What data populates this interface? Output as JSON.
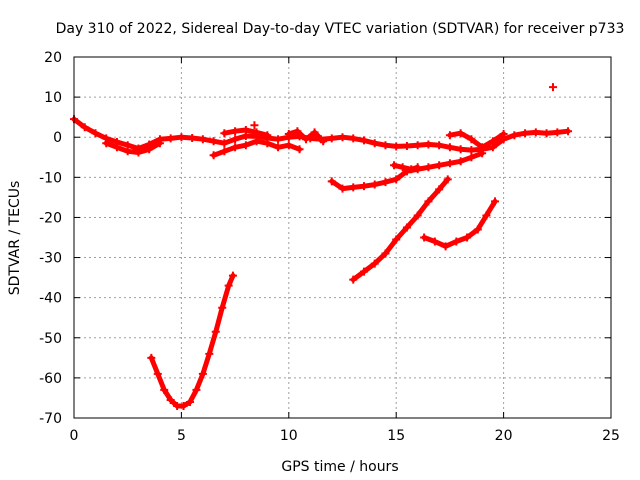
{
  "chart_data": {
    "type": "scatter",
    "title": "Day 310 of 2022, Sidereal Day-to-day VTEC variation (SDTVAR) for receiver p733",
    "xlabel": "GPS time / hours",
    "ylabel": "SDTVAR / TECUs",
    "xlim": [
      0,
      25
    ],
    "ylim": [
      -70,
      20
    ],
    "x_ticks": [
      "0",
      "5",
      "10",
      "15",
      "20",
      "25"
    ],
    "y_ticks": [
      "-70",
      "-60",
      "-50",
      "-40",
      "-30",
      "-20",
      "-10",
      "0",
      "10",
      "20"
    ],
    "grid": true,
    "marker": "plus",
    "color": "#ff0000",
    "series": [
      {
        "name": "baseline",
        "x": [
          0.0,
          0.5,
          1.0,
          1.5,
          2.0,
          2.5,
          3.0,
          3.5,
          4.0,
          4.5,
          5.0,
          5.5,
          6.0,
          6.5,
          7.0,
          7.5,
          8.0,
          8.5,
          9.0,
          9.5,
          10.0,
          10.5,
          11.0,
          11.5,
          12.0,
          12.5,
          13.0,
          13.5,
          14.0,
          14.5,
          15.0,
          15.5,
          16.0,
          16.5,
          17.0,
          17.5,
          18.0,
          18.5,
          19.0,
          19.5,
          20.0,
          20.5,
          21.0,
          21.5,
          22.0,
          22.5,
          23.0
        ],
        "y": [
          4.5,
          2.5,
          1.0,
          -0.3,
          -1.2,
          -2.0,
          -2.8,
          -1.8,
          -0.5,
          -0.3,
          0.0,
          -0.2,
          -0.5,
          -1.0,
          -1.5,
          -0.5,
          0.3,
          0.2,
          -0.2,
          -0.5,
          0.0,
          0.2,
          -0.3,
          -0.5,
          -0.3,
          0.0,
          -0.3,
          -0.8,
          -1.5,
          -2.0,
          -2.3,
          -2.2,
          -2.0,
          -1.8,
          -2.0,
          -2.5,
          -3.0,
          -3.2,
          -3.0,
          -2.5,
          -0.5,
          0.5,
          1.0,
          1.2,
          1.0,
          1.2,
          1.5
        ]
      },
      {
        "name": "dip-0-3h",
        "x": [
          1.5,
          2.0,
          2.5,
          3.0,
          3.5,
          4.0
        ],
        "y": [
          -1.5,
          -2.5,
          -3.5,
          -3.8,
          -3.0,
          -1.5
        ]
      },
      {
        "name": "band-6-10h",
        "x": [
          6.5,
          7.0,
          7.5,
          8.0,
          8.5,
          9.0,
          9.5,
          10.0,
          10.5
        ],
        "y": [
          -4.5,
          -3.5,
          -2.5,
          -2.0,
          -1.0,
          -1.5,
          -2.5,
          -2.0,
          -3.0
        ]
      },
      {
        "name": "upper-band-7-9h",
        "x": [
          7.0,
          7.5,
          8.0,
          8.5,
          9.0
        ],
        "y": [
          1.0,
          1.5,
          1.8,
          1.2,
          0.5
        ]
      },
      {
        "name": "noise-10-12h",
        "x": [
          10.0,
          10.4,
          10.8,
          11.2,
          11.6
        ],
        "y": [
          0.8,
          1.5,
          -0.5,
          1.2,
          -1.0
        ]
      },
      {
        "name": "noise-17-20h",
        "x": [
          17.5,
          18.0,
          18.5,
          19.0,
          19.5,
          20.0
        ],
        "y": [
          0.5,
          1.0,
          -0.5,
          -2.5,
          -1.0,
          0.8
        ]
      },
      {
        "name": "isolated-8h",
        "x": [
          8.4
        ],
        "y": [
          3.0
        ]
      },
      {
        "name": "isolated-22h",
        "x": [
          22.3
        ],
        "y": [
          12.5
        ]
      },
      {
        "name": "rising-12-19h",
        "x": [
          12.0,
          12.5,
          13.0,
          13.5,
          14.0,
          14.5,
          15.0,
          15.5,
          16.0,
          16.5,
          17.0,
          17.5,
          18.0,
          18.5,
          19.0
        ],
        "y": [
          -11.0,
          -12.8,
          -12.5,
          -12.2,
          -11.8,
          -11.2,
          -10.5,
          -8.5,
          -8.0,
          -7.5,
          -7.0,
          -6.5,
          -6.0,
          -5.0,
          -4.0
        ]
      },
      {
        "name": "short-15h",
        "x": [
          14.9,
          15.3,
          15.7,
          16.0
        ],
        "y": [
          -7.0,
          -7.5,
          -8.0,
          -7.5
        ]
      },
      {
        "name": "diagonal-13-17h",
        "x": [
          13.0,
          13.5,
          14.0,
          14.5,
          15.0,
          15.5,
          16.0,
          16.5,
          17.0,
          17.4
        ],
        "y": [
          -35.5,
          -33.5,
          -31.5,
          -29.0,
          -25.5,
          -22.5,
          -19.5,
          -16.0,
          -13.0,
          -10.5
        ]
      },
      {
        "name": "arc-16-20h",
        "x": [
          16.3,
          16.8,
          17.3,
          17.8,
          18.3,
          18.8,
          19.2,
          19.6
        ],
        "y": [
          -25.0,
          -26.0,
          -27.2,
          -26.0,
          -25.0,
          -23.0,
          -19.5,
          -16.0
        ]
      },
      {
        "name": "v-dip-3-7h",
        "x": [
          3.6,
          3.9,
          4.2,
          4.5,
          4.8,
          5.1,
          5.4,
          5.7,
          6.0,
          6.3,
          6.6,
          6.9,
          7.2,
          7.4
        ],
        "y": [
          -55.0,
          -59.0,
          -63.0,
          -65.5,
          -67.0,
          -67.0,
          -66.0,
          -63.0,
          -59.0,
          -54.0,
          -48.5,
          -42.5,
          -37.0,
          -34.5
        ]
      }
    ]
  }
}
